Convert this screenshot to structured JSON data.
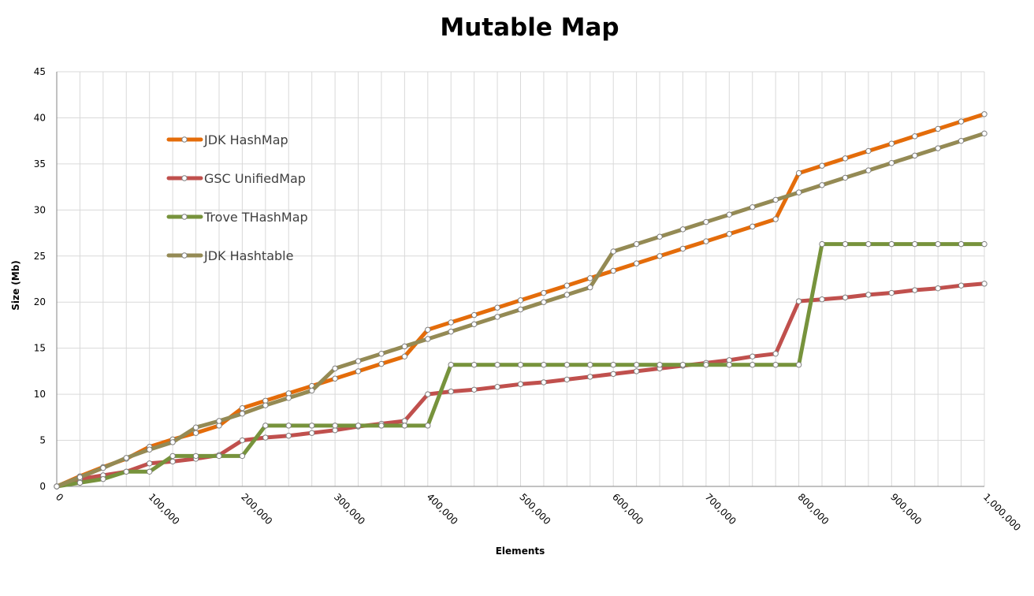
{
  "chart_data": {
    "type": "line",
    "title": "Mutable Map",
    "xlabel": "Elements",
    "ylabel": "Size (Mb)",
    "xlim": [
      0,
      1000000
    ],
    "ylim": [
      0,
      45
    ],
    "x_ticks": [
      "0",
      "100,000",
      "200,000",
      "300,000",
      "400,000",
      "500,000",
      "600,000",
      "700,000",
      "800,000",
      "900,000",
      "1,000,000"
    ],
    "y_ticks": [
      "0",
      "5",
      "10",
      "15",
      "20",
      "25",
      "30",
      "35",
      "40",
      "45"
    ],
    "grid": true,
    "legend_position": "left",
    "x": [
      0,
      25000,
      50000,
      75000,
      100000,
      125000,
      150000,
      175000,
      200000,
      225000,
      250000,
      275000,
      300000,
      325000,
      350000,
      375000,
      400000,
      425000,
      450000,
      475000,
      500000,
      525000,
      550000,
      575000,
      600000,
      625000,
      650000,
      675000,
      700000,
      725000,
      750000,
      775000,
      800000,
      825000,
      850000,
      875000,
      900000,
      925000,
      950000,
      975000,
      1000000
    ],
    "series": [
      {
        "name": "JDK HashMap",
        "color": "#e46c0a",
        "values": [
          0,
          1.1,
          2.1,
          3.0,
          4.3,
          5.1,
          5.8,
          6.6,
          8.5,
          9.3,
          10.1,
          10.9,
          11.7,
          12.5,
          13.3,
          14.1,
          17.0,
          17.8,
          18.6,
          19.4,
          20.2,
          21.0,
          21.8,
          22.6,
          23.4,
          24.2,
          25.0,
          25.8,
          26.6,
          27.4,
          28.2,
          29.0,
          34.0,
          34.8,
          35.6,
          36.4,
          37.2,
          38.0,
          38.8,
          39.6,
          40.4
        ]
      },
      {
        "name": "GSC UnifiedMap",
        "color": "#c0504d",
        "values": [
          0,
          0.8,
          1.2,
          1.6,
          2.5,
          2.7,
          3.0,
          3.4,
          5.0,
          5.3,
          5.5,
          5.8,
          6.1,
          6.5,
          6.8,
          7.1,
          10.0,
          10.3,
          10.5,
          10.8,
          11.1,
          11.3,
          11.6,
          11.9,
          12.2,
          12.5,
          12.8,
          13.1,
          13.4,
          13.7,
          14.1,
          14.4,
          20.1,
          20.3,
          20.5,
          20.8,
          21.0,
          21.3,
          21.5,
          21.8,
          22.0
        ]
      },
      {
        "name": "Trove THashMap",
        "color": "#77933c",
        "values": [
          0,
          0.4,
          0.8,
          1.6,
          1.6,
          3.3,
          3.3,
          3.3,
          3.3,
          6.6,
          6.6,
          6.6,
          6.6,
          6.6,
          6.6,
          6.6,
          6.6,
          13.2,
          13.2,
          13.2,
          13.2,
          13.2,
          13.2,
          13.2,
          13.2,
          13.2,
          13.2,
          13.2,
          13.2,
          13.2,
          13.2,
          13.2,
          13.2,
          26.3,
          26.3,
          26.3,
          26.3,
          26.3,
          26.3,
          26.3,
          26.3
        ]
      },
      {
        "name": "JDK Hashtable",
        "color": "#948a54",
        "values": [
          0,
          1.0,
          2.0,
          3.1,
          4.0,
          4.8,
          6.4,
          7.1,
          7.9,
          8.8,
          9.6,
          10.4,
          12.8,
          13.6,
          14.4,
          15.2,
          16.0,
          16.8,
          17.6,
          18.4,
          19.2,
          20.0,
          20.8,
          21.6,
          25.5,
          26.3,
          27.1,
          27.9,
          28.7,
          29.5,
          30.3,
          31.1,
          31.9,
          32.7,
          33.5,
          34.3,
          35.1,
          35.9,
          36.7,
          37.5,
          38.3
        ]
      }
    ]
  }
}
